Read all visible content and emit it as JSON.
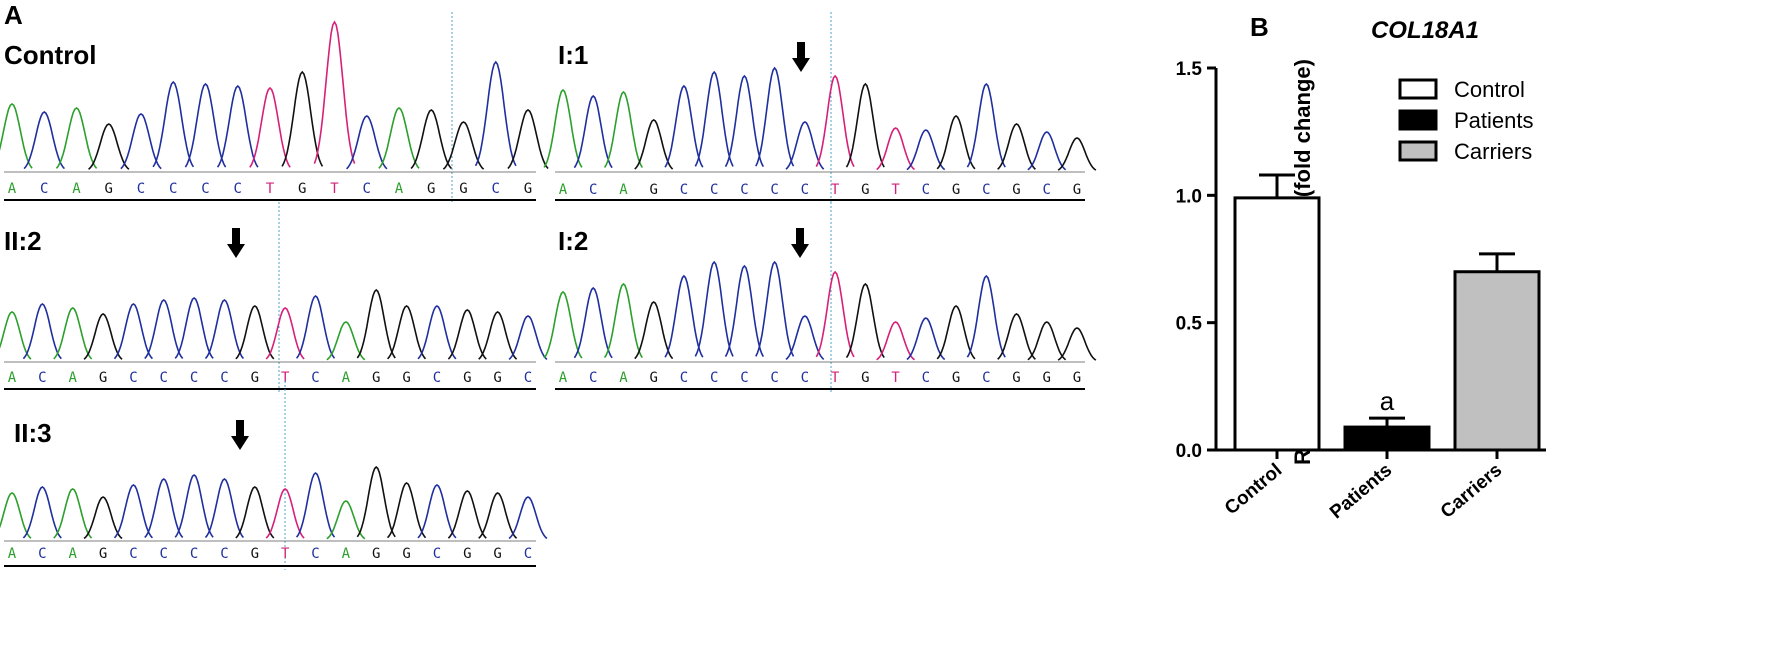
{
  "panels": {
    "a_letter": "A",
    "b_letter": "B"
  },
  "traces": [
    {
      "label": "Control",
      "sequence": [
        "A",
        "C",
        "A",
        "G",
        "C",
        "C",
        "C",
        "C",
        "T",
        "G",
        "T",
        "C",
        "A",
        "G",
        "G",
        "C",
        "G"
      ],
      "arrow": false
    },
    {
      "label": "I:1",
      "sequence": [
        "A",
        "C",
        "A",
        "G",
        "C",
        "C",
        "C",
        "C",
        "C",
        "T",
        "G",
        "T",
        "C",
        "G",
        "C",
        "G",
        "C",
        "G"
      ],
      "arrow": true
    },
    {
      "label": "II:2",
      "sequence": [
        "A",
        "C",
        "A",
        "G",
        "C",
        "C",
        "C",
        "C",
        "G",
        "T",
        "C",
        "A",
        "G",
        "G",
        "C",
        "G",
        "G",
        "C"
      ],
      "arrow": true
    },
    {
      "label": "I:2",
      "sequence": [
        "A",
        "C",
        "A",
        "G",
        "C",
        "C",
        "C",
        "C",
        "C",
        "T",
        "G",
        "T",
        "C",
        "G",
        "C",
        "G",
        "G",
        "G"
      ],
      "arrow": true
    },
    {
      "label": "II:3",
      "sequence": [
        "A",
        "C",
        "A",
        "G",
        "C",
        "C",
        "C",
        "C",
        "G",
        "T",
        "C",
        "A",
        "G",
        "G",
        "C",
        "G",
        "G",
        "C"
      ],
      "arrow": true
    }
  ],
  "base_colors": {
    "A": "#2ca02c",
    "C": "#1f2f9e",
    "G": "#111111",
    "T": "#d6207a"
  },
  "chart_data": {
    "type": "bar",
    "title": "COL18A1",
    "ylabel": "Relative expression level (fold change)",
    "xlabel": "",
    "categories": [
      "Control",
      "Patients",
      "Carriers"
    ],
    "values": [
      0.99,
      0.09,
      0.7
    ],
    "errors": [
      0.09,
      0.035,
      0.07
    ],
    "ylim": [
      0,
      1.5
    ],
    "yticks": [
      "0.0",
      "0.5",
      "1.0",
      "1.5"
    ],
    "fills": [
      "#ffffff",
      "#000000",
      "#c0c0c0"
    ],
    "annotations": [
      {
        "category": "Patients",
        "text": "a"
      }
    ],
    "legend": {
      "position": "top-right",
      "entries": [
        {
          "label": "Control",
          "fill": "#ffffff"
        },
        {
          "label": "Patients",
          "fill": "#000000"
        },
        {
          "label": "Carriers",
          "fill": "#c0c0c0"
        }
      ]
    },
    "grid": false
  }
}
